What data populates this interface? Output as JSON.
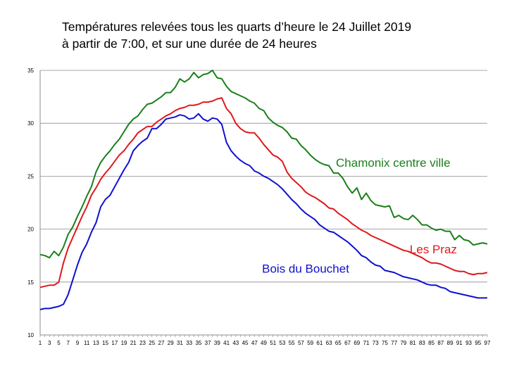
{
  "chart_data": {
    "type": "line",
    "title": "Températures relevées tous les quarts d’heure le 24 Juillet 2019",
    "subtitle": "à partir de 7:00, et sur une durée de 24 heures",
    "xlabel": "",
    "ylabel": "",
    "ylim": [
      10,
      35
    ],
    "yticks": [
      10,
      15,
      20,
      25,
      30,
      35
    ],
    "xlim": [
      1,
      97
    ],
    "xtick_labels": [
      "1",
      "3",
      "5",
      "7",
      "9",
      "11",
      "13",
      "15",
      "17",
      "19",
      "21",
      "23",
      "25",
      "27",
      "29",
      "31",
      "33",
      "35",
      "37",
      "39",
      "41",
      "43",
      "45",
      "47",
      "49",
      "51",
      "53",
      "55",
      "57",
      "59",
      "61",
      "63",
      "65",
      "67",
      "69",
      "71",
      "73",
      "75",
      "77",
      "79",
      "81",
      "83",
      "85",
      "87",
      "89",
      "91",
      "93",
      "95",
      "97"
    ],
    "grid": "horizontal",
    "legend": "inline labels",
    "x": [
      1,
      2,
      3,
      4,
      5,
      6,
      7,
      8,
      9,
      10,
      11,
      12,
      13,
      14,
      15,
      16,
      17,
      18,
      19,
      20,
      21,
      22,
      23,
      24,
      25,
      26,
      27,
      28,
      29,
      30,
      31,
      32,
      33,
      34,
      35,
      36,
      37,
      38,
      39,
      40,
      41,
      42,
      43,
      44,
      45,
      46,
      47,
      48,
      49,
      50,
      51,
      52,
      53,
      54,
      55,
      56,
      57,
      58,
      59,
      60,
      61,
      62,
      63,
      64,
      65,
      66,
      67,
      68,
      69,
      70,
      71,
      72,
      73,
      74,
      75,
      76,
      77,
      78,
      79,
      80,
      81,
      82,
      83,
      84,
      85,
      86,
      87,
      88,
      89,
      90,
      91,
      92,
      93,
      94,
      95,
      96,
      97
    ],
    "series": [
      {
        "name": "Chamonix centre ville",
        "color": "#1a7f1a",
        "values": [
          17.6,
          17.5,
          17.3,
          17.9,
          17.5,
          18.3,
          19.5,
          20.2,
          21.2,
          22.1,
          23.1,
          24.0,
          25.4,
          26.3,
          26.9,
          27.4,
          28.0,
          28.5,
          29.2,
          29.9,
          30.4,
          30.7,
          31.3,
          31.8,
          31.9,
          32.2,
          32.5,
          32.9,
          32.9,
          33.4,
          34.2,
          33.9,
          34.2,
          34.8,
          34.3,
          34.6,
          34.7,
          35.0,
          34.3,
          34.2,
          33.5,
          33.0,
          32.8,
          32.6,
          32.4,
          32.1,
          31.9,
          31.4,
          31.2,
          30.5,
          30.1,
          29.8,
          29.6,
          29.2,
          28.6,
          28.5,
          27.9,
          27.5,
          27.0,
          26.6,
          26.3,
          26.1,
          26.0,
          25.3,
          25.3,
          24.8,
          24.0,
          23.4,
          23.9,
          22.8,
          23.4,
          22.7,
          22.3,
          22.2,
          22.1,
          22.2,
          21.1,
          21.3,
          21.0,
          20.9,
          21.3,
          20.9,
          20.4,
          20.4,
          20.1,
          19.9,
          20.0,
          19.8,
          19.8,
          19.0,
          19.4,
          19.0,
          18.9,
          18.5,
          18.6,
          18.7,
          18.6
        ]
      },
      {
        "name": "Les Praz",
        "color": "#e0181b",
        "values": [
          14.5,
          14.6,
          14.7,
          14.7,
          15.0,
          16.8,
          18.2,
          19.2,
          20.2,
          21.2,
          22.1,
          23.2,
          23.9,
          24.7,
          25.3,
          25.8,
          26.4,
          27.0,
          27.4,
          28.0,
          28.5,
          29.1,
          29.4,
          29.7,
          29.7,
          30.1,
          30.4,
          30.7,
          30.9,
          31.2,
          31.4,
          31.5,
          31.7,
          31.7,
          31.8,
          32.0,
          32.0,
          32.1,
          32.3,
          32.4,
          31.4,
          30.9,
          30.0,
          29.5,
          29.2,
          29.1,
          29.1,
          28.6,
          28.0,
          27.5,
          27.0,
          26.8,
          26.4,
          25.4,
          24.8,
          24.4,
          24.0,
          23.5,
          23.2,
          23.0,
          22.7,
          22.4,
          22.0,
          21.9,
          21.5,
          21.2,
          20.9,
          20.5,
          20.2,
          19.9,
          19.7,
          19.4,
          19.2,
          19.0,
          18.8,
          18.6,
          18.4,
          18.2,
          18.0,
          17.9,
          17.7,
          17.5,
          17.3,
          17.0,
          16.8,
          16.8,
          16.7,
          16.5,
          16.3,
          16.1,
          16.0,
          16.0,
          15.8,
          15.7,
          15.8,
          15.8,
          15.9
        ]
      },
      {
        "name": "Bois du Bouchet",
        "color": "#1010d0",
        "values": [
          12.4,
          12.5,
          12.5,
          12.6,
          12.7,
          12.9,
          13.8,
          15.2,
          16.6,
          17.8,
          18.6,
          19.7,
          20.6,
          22.1,
          22.8,
          23.2,
          24.0,
          24.8,
          25.6,
          26.3,
          27.4,
          27.9,
          28.3,
          28.6,
          29.5,
          29.5,
          29.9,
          30.4,
          30.5,
          30.6,
          30.8,
          30.7,
          30.4,
          30.5,
          30.9,
          30.4,
          30.2,
          30.5,
          30.4,
          29.9,
          28.2,
          27.4,
          26.9,
          26.5,
          26.2,
          26.0,
          25.5,
          25.3,
          25.0,
          24.8,
          24.5,
          24.2,
          23.8,
          23.3,
          22.8,
          22.4,
          21.9,
          21.5,
          21.2,
          20.9,
          20.4,
          20.1,
          19.8,
          19.7,
          19.4,
          19.1,
          18.8,
          18.4,
          18.0,
          17.5,
          17.3,
          16.9,
          16.6,
          16.5,
          16.1,
          16.0,
          15.9,
          15.7,
          15.5,
          15.4,
          15.3,
          15.2,
          15.0,
          14.8,
          14.7,
          14.7,
          14.5,
          14.4,
          14.1,
          14.0,
          13.9,
          13.8,
          13.7,
          13.6,
          13.5,
          13.5,
          13.5
        ]
      }
    ]
  }
}
